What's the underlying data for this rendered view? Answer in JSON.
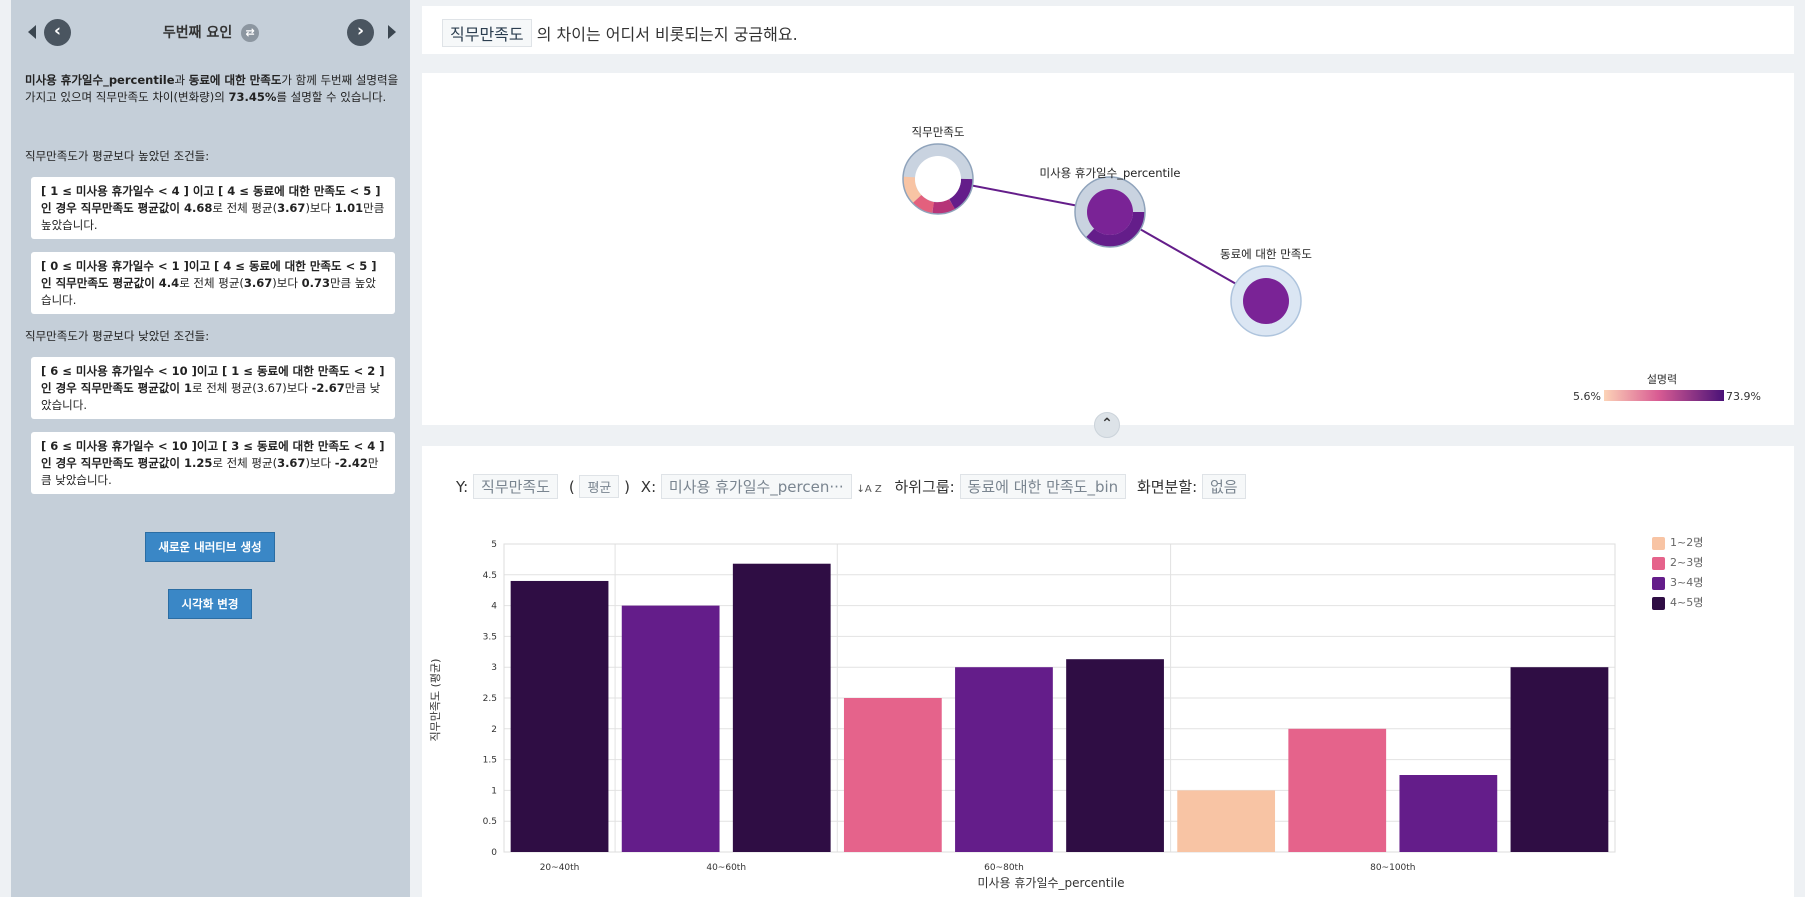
{
  "sidebar": {
    "title": "두번째 요인",
    "summary": {
      "feature1": "미사용 휴가일수_percentile",
      "t1": "과 ",
      "feature2": "동료에 대한 만족도",
      "t2": "가 함께 두번째 설명력을 가지고 있으며 직무만족도 차이(변화량)의 ",
      "pct": "73.45%",
      "t3": "를 설명할 수 있습니다."
    },
    "high_label": "직무만족도가 평균보다 높았던 조건들:",
    "low_label": "직무만족도가 평균보다 낮았던 조건들:",
    "cards": [
      {
        "bold": "[ 1 ≤ 미사용 휴가일수 < 4 ] 이고 [ 4 ≤ 동료에 대한 만족도 < 5 ]인 경우 직무만족도 평균값이 4.68",
        "a": "로 전체 평균(",
        "avg": "3.67",
        "b": ")보다 ",
        "diff": "1.01",
        "c": "만큼 높았습니다."
      },
      {
        "bold": "[ 0 ≤ 미사용 휴가일수 < 1 ]이고 [ 4 ≤ 동료에 대한 만족도 < 5 ]인 직무만족도 평균값이 4.4",
        "a": "로 전체 평균(",
        "avg": "3.67",
        "b": ")보다 ",
        "diff": "0.73",
        "c": "만큼 높았습니다."
      },
      {
        "bold": "[ 6 ≤ 미사용 휴가일수 < 10 ]이고 [ 1 ≤ 동료에 대한 만족도 < 2 ]인 경우 직무만족도 평균값이 1",
        "a": "로 전체 평균(3.67)보다 ",
        "avg": "",
        "b": "",
        "diff": "-2.67",
        "c": "만큼 낮았습니다."
      },
      {
        "bold": "[ 6 ≤ 미사용 휴가일수 < 10 ]이고 [ 3 ≤ 동료에 대한 만족도 < 4 ]인 경우 직무만족도 평균값이 1.25",
        "a": "로 전체 평균(",
        "avg": "3.67",
        "b": ")보다 ",
        "diff": "-2.42",
        "c": "만큼 낮았습니다."
      }
    ],
    "btn_new": "새로운 내러티브 생성",
    "btn_vis": "시각화 변경"
  },
  "question": {
    "target": "직무만족도",
    "rest": "의 차이는 어디서 비롯되는지 궁금해요."
  },
  "network": {
    "nodes": [
      {
        "name": "직무만족도",
        "label": "직무만족도"
      },
      {
        "name": "미사용 휴가일수_percentile",
        "label": "미사용 휴가일수_percentile"
      },
      {
        "name": "동료에 대한 만족도",
        "label": "동료에 대한 만족도"
      }
    ],
    "legend_title": "설명력",
    "legend_min": "5.6%",
    "legend_max": "73.9%"
  },
  "controls": {
    "y_label": "Y:",
    "y_value": "직무만족도",
    "agg": "평균",
    "x_label": "X:",
    "x_value": "미사용 휴가일수_percen···",
    "sort_icon": "↓A Z",
    "group_label": "하위그룹:",
    "group_value": "동료에 대한 만족도_bin",
    "split_label": "화면분할:",
    "split_value": "없음"
  },
  "chart_data": {
    "type": "bar",
    "xlabel": "미사용 휴가일수_percentile",
    "ylabel": "직무만족도 (평균)",
    "ylim": [
      0,
      5
    ],
    "yticks": [
      "0",
      "0.5",
      "1",
      "1.5",
      "2",
      "2.5",
      "3",
      "3.5",
      "4",
      "4.5",
      "5"
    ],
    "categories": [
      "20~40th",
      "40~60th",
      "60~80th",
      "80~100th"
    ],
    "series": [
      {
        "name": "1~2명",
        "color": "#f8c4a4",
        "values": [
          null,
          null,
          null,
          1
        ]
      },
      {
        "name": "2~3명",
        "color": "#e5638b",
        "values": [
          null,
          null,
          2.5,
          2
        ]
      },
      {
        "name": "3~4명",
        "color": "#641d8a",
        "values": [
          null,
          4,
          3,
          1.25
        ]
      },
      {
        "name": "4~5명",
        "color": "#2f0d44",
        "values": [
          4.4,
          4.68,
          3.13,
          3
        ]
      }
    ]
  }
}
